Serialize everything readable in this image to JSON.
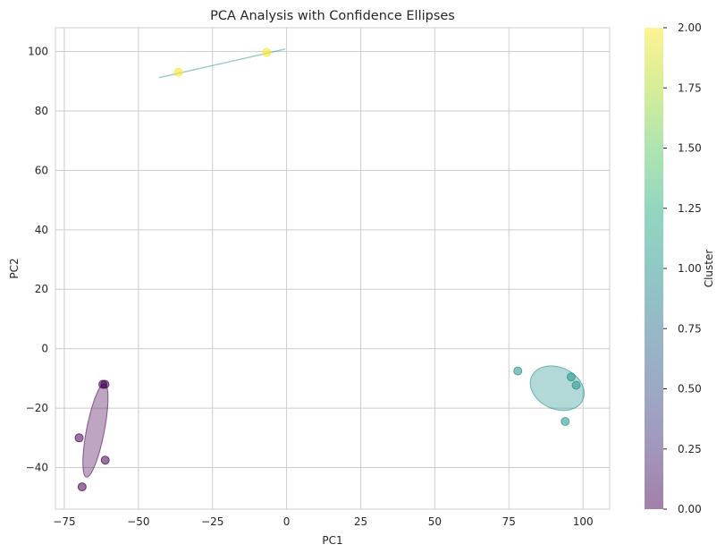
{
  "chart_data": {
    "type": "scatter",
    "title": "PCA Analysis with Confidence Ellipses",
    "xlabel": "PC1",
    "ylabel": "PC2",
    "xlim": [
      -78,
      109
    ],
    "ylim": [
      -54,
      108
    ],
    "xticks": [
      -75,
      -50,
      -25,
      0,
      25,
      50,
      75,
      100
    ],
    "yticks": [
      -40,
      -20,
      0,
      20,
      40,
      60,
      80,
      100
    ],
    "grid": true,
    "colorbar": {
      "label": "Cluster",
      "range": [
        0,
        2
      ],
      "ticks": [
        "0.00",
        "0.25",
        "0.50",
        "0.75",
        "1.00",
        "1.25",
        "1.50",
        "1.75",
        "2.00"
      ],
      "colormap": "viridis"
    },
    "clusters": [
      {
        "cluster": 0,
        "color": "#440154",
        "points": [
          {
            "x": -62,
            "y": -12
          },
          {
            "x": -61.3,
            "y": -12
          },
          {
            "x": -70,
            "y": -30
          },
          {
            "x": -61.2,
            "y": -37.5
          },
          {
            "x": -69,
            "y": -46.5
          }
        ],
        "ellipse": {
          "cx": -64.5,
          "cy": -27.5,
          "rx": 16,
          "ry": 3,
          "angle_deg": 79
        }
      },
      {
        "cluster": 1,
        "color": "#21918c",
        "points": [
          {
            "x": 78,
            "y": -7.5
          },
          {
            "x": 96,
            "y": -9.5
          },
          {
            "x": 97.7,
            "y": -12.3
          },
          {
            "x": 94,
            "y": -24.5
          }
        ],
        "ellipse": {
          "cx": 91.3,
          "cy": -13.3,
          "rx": 9.5,
          "ry": 7,
          "angle_deg": -25
        }
      },
      {
        "cluster": 2,
        "color": "#fde725",
        "points": [
          {
            "x": -36.5,
            "y": 93
          },
          {
            "x": -6.7,
            "y": 99.7
          }
        ],
        "line": {
          "x1": -43,
          "y1": 91.2,
          "x2": -0.5,
          "y2": 100.8
        }
      }
    ]
  }
}
